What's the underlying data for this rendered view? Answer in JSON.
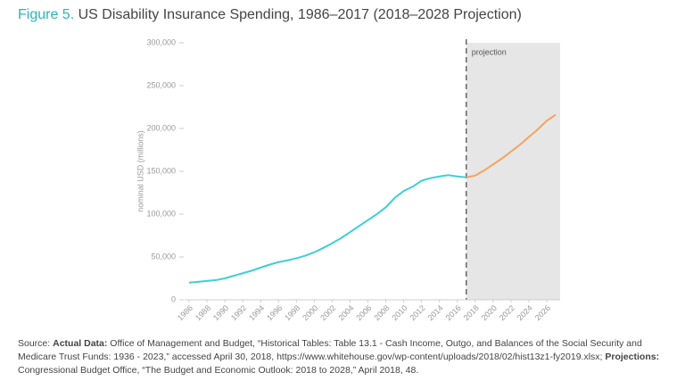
{
  "chart_data": {
    "type": "line",
    "title_label": "Figure 5.",
    "title": "US Disability Insurance Spending, 1986–2017 (2018–2028 Projection)",
    "y_label": "nominal USD (millions)",
    "annotation": "projection",
    "projection_start": 2017,
    "x": [
      1986,
      1987,
      1988,
      1989,
      1990,
      1991,
      1992,
      1993,
      1994,
      1995,
      1996,
      1997,
      1998,
      1999,
      2000,
      2001,
      2002,
      2003,
      2004,
      2005,
      2006,
      2007,
      2008,
      2009,
      2010,
      2011,
      2012,
      2013,
      2014,
      2015,
      2016,
      2017,
      2018,
      2019,
      2020,
      2021,
      2022,
      2023,
      2024,
      2025,
      2026,
      2027
    ],
    "series": [
      {
        "color": "#3ecfd6",
        "values": [
          20000,
          21000,
          22000,
          23000,
          25000,
          28000,
          31000,
          34000,
          37500,
          41000,
          44000,
          46000,
          48500,
          51500,
          55500,
          60500,
          66000,
          72000,
          79000,
          86000,
          93000,
          100000,
          108000,
          119000,
          127000,
          132000,
          139000,
          142000,
          144000,
          145500,
          144000,
          143000,
          null,
          null,
          null,
          null,
          null,
          null,
          null,
          null,
          null,
          null
        ]
      },
      {
        "color": "#f7a35c",
        "values": [
          null,
          null,
          null,
          null,
          null,
          null,
          null,
          null,
          null,
          null,
          null,
          null,
          null,
          null,
          null,
          null,
          null,
          null,
          null,
          null,
          null,
          null,
          null,
          null,
          null,
          null,
          null,
          null,
          null,
          null,
          null,
          143000,
          145000,
          151000,
          158000,
          165000,
          173000,
          181000,
          190000,
          199000,
          209000,
          216000
        ]
      }
    ],
    "xlim": [
      1985.5,
      2027.5
    ],
    "xticks": [
      1986,
      1988,
      1990,
      1992,
      1994,
      1996,
      1998,
      2000,
      2002,
      2004,
      2006,
      2008,
      2010,
      2012,
      2014,
      2016,
      2018,
      2020,
      2022,
      2024,
      2026
    ],
    "ylim": [
      0,
      300000
    ],
    "yticks": [
      0,
      {
        "value": 50000,
        "label": "50,000"
      },
      {
        "value": 100000,
        "label": "100,000"
      },
      {
        "value": 150000,
        "label": "150,000"
      },
      {
        "value": 200000,
        "label": "200,000"
      },
      {
        "value": 250000,
        "label": "250,000"
      },
      {
        "value": 300000,
        "label": "300,000"
      }
    ],
    "source": {
      "label": "Source:",
      "actual_label": "Actual Data:",
      "actual_text": "Office of Management and Budget, “Historical Tables: Table 13.1 - Cash Income, Outgo, and Balances of the Social Security and Medicare Trust Funds: 1936 - 2023,” accessed April 30, 2018, https://www.whitehouse.gov/wp-content/uploads/2018/02/hist13z1-fy2019.xlsx;",
      "projections_label": "Projections:",
      "projections_text": "Congressional Budget Office, “The Budget and Economic Outlook: 2018 to 2028,” April 2018, 48."
    }
  }
}
